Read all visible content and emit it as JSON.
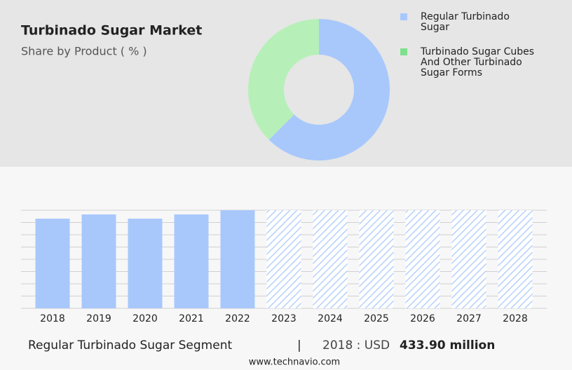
{
  "chart_data": [
    {
      "type": "pie",
      "title": "Turbinado Sugar Market",
      "subtitle": "Share by Product ( % )",
      "categories": [
        "Regular Turbinado Sugar",
        "Turbinado Sugar Cubes And Other Turbinado Sugar Forms"
      ],
      "values": [
        62.5,
        37.5
      ],
      "colors": [
        "#a8c8fc",
        "#b6f0b8"
      ],
      "legend_colors": [
        "#a8c8fc",
        "#7ee08c"
      ],
      "donut": true
    },
    {
      "type": "bar",
      "categories": [
        "2018",
        "2019",
        "2020",
        "2021",
        "2022",
        "2023",
        "2024",
        "2025",
        "2026",
        "2027",
        "2028"
      ],
      "values": [
        433.9,
        454.2,
        433.9,
        454.2,
        474.6,
        null,
        null,
        null,
        null,
        null,
        null
      ],
      "color": "#a8c8fc",
      "forecast_color": "#a8c8fc",
      "ylim": [
        0,
        474.6
      ],
      "yticks": [
        0,
        59.325,
        118.65,
        177.975,
        237.3,
        296.625,
        355.95,
        415.275,
        474.6
      ],
      "grid": true
    }
  ],
  "footer": {
    "segment": "Regular Turbinado Sugar Segment",
    "separator": "|",
    "year_label": "2018 : USD",
    "value": "433.90 million",
    "source": "www.technavio.com"
  }
}
